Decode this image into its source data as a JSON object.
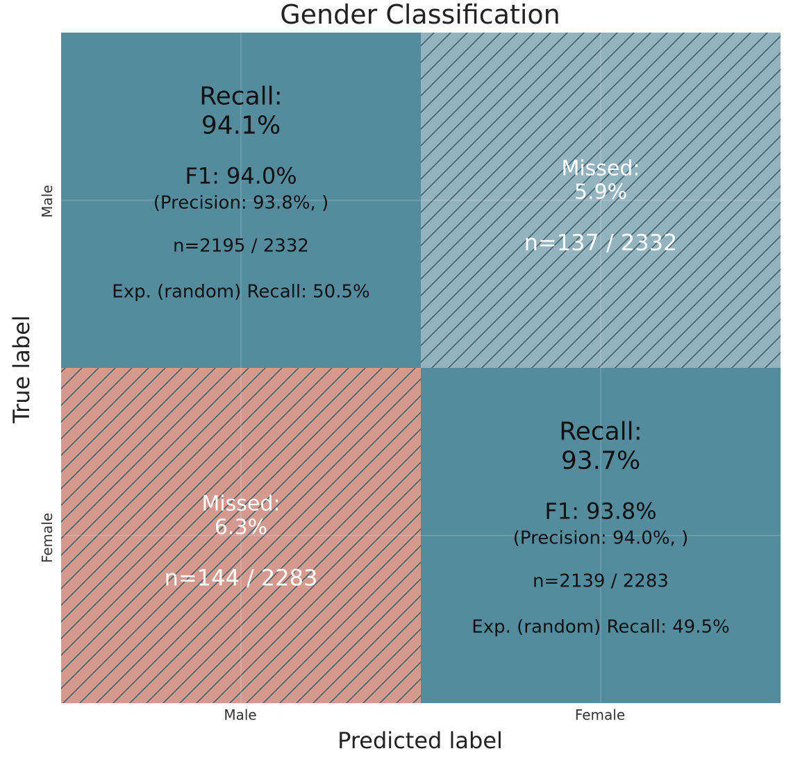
{
  "chart_data": {
    "type": "heatmap",
    "title": "Gender Classification",
    "xlabel": "Predicted label",
    "ylabel": "True label",
    "x_categories": [
      "Male",
      "Female"
    ],
    "y_categories": [
      "Male",
      "Female"
    ],
    "grid": true,
    "colors": {
      "correct": "#548c9e",
      "missed_male": "#93b4bf",
      "missed_female": "#d49a90",
      "hatch": "#46606a",
      "text_dark": "#111111",
      "text_light": "#ffffff"
    },
    "cells": [
      {
        "true": "Male",
        "predicted": "Male",
        "kind": "correct",
        "count": 2195,
        "total": 2332,
        "lines": [
          "Recall:",
          "94.1%",
          "F1: 94.0%",
          "(Precision: 93.8%, )",
          "n=2195 / 2332",
          "Exp. (random) Recall: 50.5%"
        ]
      },
      {
        "true": "Male",
        "predicted": "Female",
        "kind": "missed",
        "count": 137,
        "total": 2332,
        "lines": [
          "Missed:",
          "5.9%",
          "n=137 / 2332"
        ]
      },
      {
        "true": "Female",
        "predicted": "Male",
        "kind": "missed",
        "count": 144,
        "total": 2283,
        "lines": [
          "Missed:",
          "6.3%",
          "n=144 / 2283"
        ]
      },
      {
        "true": "Female",
        "predicted": "Female",
        "kind": "correct",
        "count": 2139,
        "total": 2283,
        "lines": [
          "Recall:",
          "93.7%",
          "F1: 93.8%",
          "(Precision: 94.0%, )",
          "n=2139 / 2283",
          "Exp. (random) Recall: 49.5%"
        ]
      }
    ]
  }
}
